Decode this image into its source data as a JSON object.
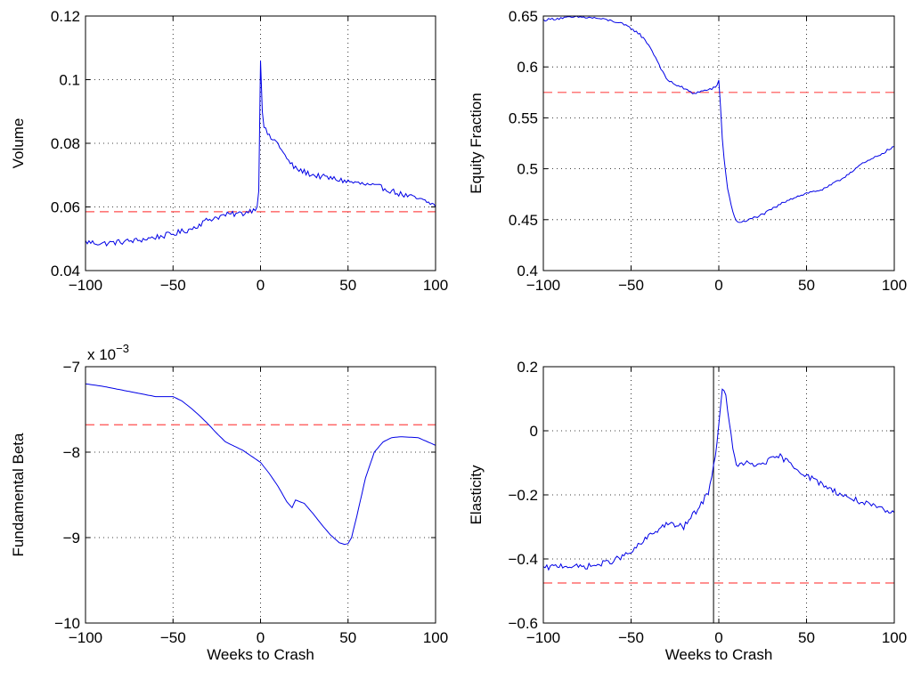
{
  "chart_data": [
    {
      "type": "line",
      "xlabel": "",
      "ylabel": "Volume",
      "xlim": [
        -100,
        100
      ],
      "ylim": [
        0.04,
        0.12
      ],
      "xticks": [
        -100,
        -50,
        0,
        50,
        100
      ],
      "xtick_labels": [
        "−100",
        "−50",
        "0",
        "50",
        "100"
      ],
      "yticks": [
        0.04,
        0.06,
        0.08,
        0.1,
        0.12
      ],
      "ytick_labels": [
        "0.04",
        "0.06",
        "0.08",
        "0.1",
        "0.12"
      ],
      "grid": true,
      "reference_line": 0.0585,
      "noise": 0.0009,
      "series": [
        {
          "x": [
            -100,
            -90,
            -80,
            -70,
            -60,
            -50,
            -40,
            -30,
            -20,
            -10,
            -5,
            -2,
            -1,
            0,
            1,
            2,
            5,
            10,
            15,
            20,
            30,
            40,
            50,
            60,
            70,
            80,
            90,
            100
          ],
          "y": [
            0.049,
            0.0485,
            0.049,
            0.0495,
            0.0505,
            0.0515,
            0.053,
            0.056,
            0.0575,
            0.058,
            0.059,
            0.06,
            0.065,
            0.106,
            0.09,
            0.085,
            0.082,
            0.08,
            0.075,
            0.072,
            0.07,
            0.069,
            0.068,
            0.067,
            0.066,
            0.064,
            0.0625,
            0.0605
          ]
        }
      ]
    },
    {
      "type": "line",
      "xlabel": "",
      "ylabel": "Equity Fraction",
      "xlim": [
        -100,
        100
      ],
      "ylim": [
        0.4,
        0.65
      ],
      "xticks": [
        -100,
        -50,
        0,
        50,
        100
      ],
      "xtick_labels": [
        "−100",
        "−50",
        "0",
        "50",
        "100"
      ],
      "yticks": [
        0.4,
        0.45,
        0.5,
        0.55,
        0.6,
        0.65
      ],
      "ytick_labels": [
        "0.4",
        "0.45",
        "0.5",
        "0.55",
        "0.6",
        "0.65"
      ],
      "grid": true,
      "reference_line": 0.575,
      "noise": 0.0012,
      "series": [
        {
          "x": [
            -100,
            -90,
            -80,
            -70,
            -60,
            -55,
            -50,
            -45,
            -40,
            -35,
            -30,
            -25,
            -20,
            -15,
            -10,
            -5,
            -2,
            -1,
            0,
            1,
            2,
            3,
            5,
            8,
            10,
            15,
            20,
            25,
            30,
            40,
            50,
            60,
            70,
            80,
            90,
            100
          ],
          "y": [
            0.646,
            0.648,
            0.649,
            0.648,
            0.645,
            0.642,
            0.638,
            0.632,
            0.622,
            0.606,
            0.588,
            0.583,
            0.579,
            0.574,
            0.576,
            0.578,
            0.58,
            0.582,
            0.587,
            0.56,
            0.53,
            0.51,
            0.48,
            0.458,
            0.448,
            0.448,
            0.452,
            0.455,
            0.46,
            0.47,
            0.476,
            0.48,
            0.49,
            0.503,
            0.512,
            0.522
          ]
        }
      ]
    },
    {
      "type": "line",
      "xlabel": "Weeks to Crash",
      "ylabel": "Fundamental Beta",
      "xlim": [
        -100,
        100
      ],
      "ylim": [
        -10,
        -7
      ],
      "xticks": [
        -100,
        -50,
        0,
        50,
        100
      ],
      "xtick_labels": [
        "−100",
        "−50",
        "0",
        "50",
        "100"
      ],
      "yticks": [
        -10,
        -9,
        -8,
        -7
      ],
      "ytick_labels": [
        "−10",
        "−9",
        "−8",
        "−7"
      ],
      "scale_factor": "x 10",
      "scale_exponent": "−3",
      "grid": true,
      "reference_line": -7.68,
      "noise": 0,
      "series": [
        {
          "x": [
            -100,
            -90,
            -80,
            -70,
            -60,
            -50,
            -45,
            -40,
            -35,
            -30,
            -25,
            -20,
            -15,
            -10,
            -5,
            0,
            5,
            10,
            15,
            18,
            20,
            25,
            30,
            35,
            40,
            45,
            48,
            50,
            52,
            55,
            60,
            65,
            70,
            75,
            80,
            90,
            100
          ],
          "y": [
            -7.2,
            -7.23,
            -7.27,
            -7.31,
            -7.35,
            -7.35,
            -7.4,
            -7.48,
            -7.57,
            -7.67,
            -7.78,
            -7.88,
            -7.93,
            -7.98,
            -8.05,
            -8.12,
            -8.25,
            -8.4,
            -8.58,
            -8.65,
            -8.56,
            -8.6,
            -8.72,
            -8.85,
            -8.97,
            -9.06,
            -9.08,
            -9.07,
            -9.0,
            -8.75,
            -8.3,
            -8.0,
            -7.88,
            -7.83,
            -7.82,
            -7.83,
            -7.92
          ]
        }
      ]
    },
    {
      "type": "line",
      "xlabel": "Weeks to Crash",
      "ylabel": "Elasticity",
      "xlim": [
        -100,
        100
      ],
      "ylim": [
        -0.6,
        0.2
      ],
      "xticks": [
        -100,
        -50,
        0,
        50,
        100
      ],
      "xtick_labels": [
        "−100",
        "−50",
        "0",
        "50",
        "100"
      ],
      "yticks": [
        -0.6,
        -0.4,
        -0.2,
        0,
        0.2
      ],
      "ytick_labels": [
        "−0.6",
        "−0.4",
        "−0.2",
        "0",
        "0.2"
      ],
      "grid": true,
      "reference_line": -0.475,
      "vertical_line": -3,
      "noise": 0.009,
      "series": [
        {
          "x": [
            -100,
            -90,
            -80,
            -70,
            -60,
            -50,
            -40,
            -30,
            -20,
            -10,
            -6,
            -4,
            -2,
            0,
            2,
            4,
            6,
            8,
            10,
            15,
            20,
            30,
            35,
            40,
            50,
            60,
            70,
            80,
            90,
            100
          ],
          "y": [
            -0.43,
            -0.42,
            -0.425,
            -0.42,
            -0.405,
            -0.38,
            -0.33,
            -0.29,
            -0.3,
            -0.23,
            -0.19,
            -0.14,
            -0.08,
            0.02,
            0.13,
            0.11,
            0.03,
            -0.06,
            -0.11,
            -0.1,
            -0.11,
            -0.09,
            -0.08,
            -0.1,
            -0.14,
            -0.17,
            -0.2,
            -0.22,
            -0.24,
            -0.26
          ]
        }
      ]
    }
  ]
}
